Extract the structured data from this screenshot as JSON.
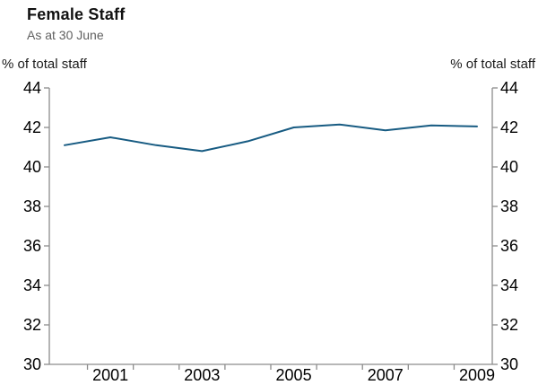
{
  "chart_data": {
    "type": "line",
    "title": "Female Staff",
    "subtitle": "As at 30 June",
    "ylabel": "% of total staff",
    "ylabel_right": "% of total staff",
    "x": [
      2000,
      2001,
      2002,
      2003,
      2004,
      2005,
      2006,
      2007,
      2008,
      2009
    ],
    "series": [
      {
        "name": "Female staff as % of total staff",
        "values": [
          41.1,
          41.5,
          41.1,
          40.8,
          41.3,
          42.0,
          42.15,
          41.85,
          42.1,
          42.05
        ],
        "color": "#175b82"
      }
    ],
    "ylim": [
      30,
      44
    ],
    "yticks": [
      30,
      32,
      34,
      36,
      38,
      40,
      42,
      44
    ],
    "xtick_labels": [
      "2001",
      "2003",
      "2005",
      "2007",
      "2009"
    ],
    "grid": false,
    "legend": "none",
    "axis_color": "#8c8c8c",
    "tick_label_color": "#000000"
  }
}
